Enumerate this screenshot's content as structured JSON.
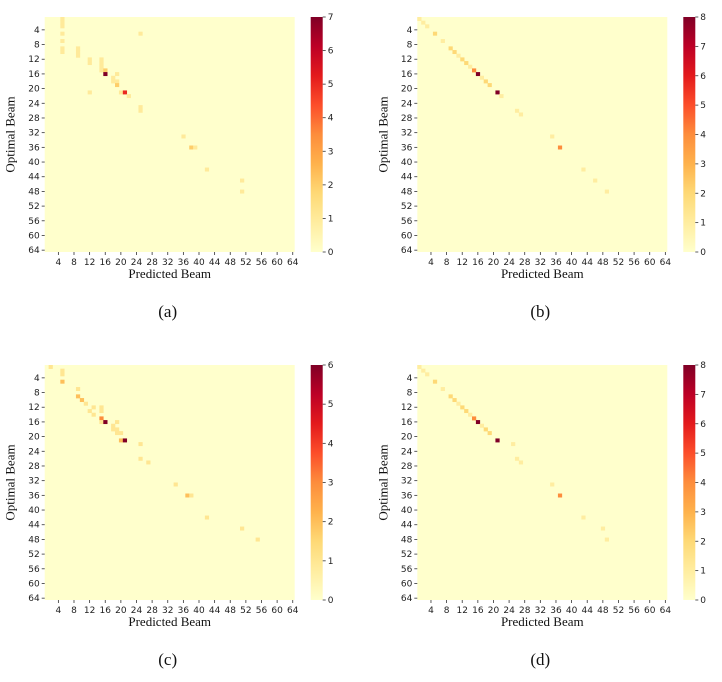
{
  "chart_data": [
    {
      "type": "heatmap",
      "caption": "(a)",
      "xlabel": "Predicted Beam",
      "ylabel": "Optimal Beam",
      "x_ticks": [
        4,
        8,
        12,
        16,
        20,
        24,
        28,
        32,
        36,
        40,
        44,
        48,
        52,
        56,
        60,
        64
      ],
      "y_ticks": [
        4,
        8,
        12,
        16,
        20,
        24,
        28,
        32,
        36,
        40,
        44,
        48,
        52,
        56,
        60,
        64
      ],
      "grid_size": 64,
      "colormap": "YlOrRd",
      "color_range": [
        0,
        7
      ],
      "colorbar_ticks": [
        0,
        1,
        2,
        3,
        4,
        5,
        6,
        7
      ],
      "cells": [
        {
          "y": 1,
          "x": 5,
          "v": 1
        },
        {
          "y": 2,
          "x": 5,
          "v": 1
        },
        {
          "y": 3,
          "x": 5,
          "v": 1
        },
        {
          "y": 5,
          "x": 5,
          "v": 1
        },
        {
          "y": 7,
          "x": 5,
          "v": 1
        },
        {
          "y": 9,
          "x": 5,
          "v": 1
        },
        {
          "y": 10,
          "x": 5,
          "v": 1
        },
        {
          "y": 5,
          "x": 25,
          "v": 1
        },
        {
          "y": 9,
          "x": 9,
          "v": 1
        },
        {
          "y": 10,
          "x": 9,
          "v": 1
        },
        {
          "y": 11,
          "x": 9,
          "v": 1
        },
        {
          "y": 12,
          "x": 12,
          "v": 1
        },
        {
          "y": 13,
          "x": 12,
          "v": 1
        },
        {
          "y": 12,
          "x": 15,
          "v": 1
        },
        {
          "y": 13,
          "x": 15,
          "v": 1
        },
        {
          "y": 14,
          "x": 15,
          "v": 1
        },
        {
          "y": 15,
          "x": 15,
          "v": 1
        },
        {
          "y": 15,
          "x": 16,
          "v": 2
        },
        {
          "y": 16,
          "x": 16,
          "v": 7
        },
        {
          "y": 16,
          "x": 19,
          "v": 1
        },
        {
          "y": 17,
          "x": 18,
          "v": 1
        },
        {
          "y": 18,
          "x": 18,
          "v": 1
        },
        {
          "y": 18,
          "x": 19,
          "v": 1
        },
        {
          "y": 19,
          "x": 19,
          "v": 2
        },
        {
          "y": 21,
          "x": 12,
          "v": 1
        },
        {
          "y": 21,
          "x": 20,
          "v": 1
        },
        {
          "y": 21,
          "x": 21,
          "v": 5
        },
        {
          "y": 22,
          "x": 22,
          "v": 1
        },
        {
          "y": 25,
          "x": 25,
          "v": 1
        },
        {
          "y": 26,
          "x": 25,
          "v": 1
        },
        {
          "y": 33,
          "x": 36,
          "v": 1
        },
        {
          "y": 36,
          "x": 38,
          "v": 2
        },
        {
          "y": 36,
          "x": 39,
          "v": 1
        },
        {
          "y": 42,
          "x": 42,
          "v": 1
        },
        {
          "y": 45,
          "x": 51,
          "v": 1
        },
        {
          "y": 48,
          "x": 51,
          "v": 1
        }
      ]
    },
    {
      "type": "heatmap",
      "caption": "(b)",
      "xlabel": "Predicted Beam",
      "ylabel": "Optimal Beam",
      "x_ticks": [
        4,
        8,
        12,
        16,
        20,
        24,
        28,
        32,
        36,
        40,
        44,
        48,
        52,
        56,
        60,
        64
      ],
      "y_ticks": [
        4,
        8,
        12,
        16,
        20,
        24,
        28,
        32,
        36,
        40,
        44,
        48,
        52,
        56,
        60,
        64
      ],
      "grid_size": 64,
      "colormap": "YlOrRd",
      "color_range": [
        0,
        8
      ],
      "colorbar_ticks": [
        0,
        1,
        2,
        3,
        4,
        5,
        6,
        7,
        8
      ],
      "cells": [
        {
          "y": 1,
          "x": 1,
          "v": 1
        },
        {
          "y": 2,
          "x": 2,
          "v": 1
        },
        {
          "y": 3,
          "x": 3,
          "v": 1
        },
        {
          "y": 5,
          "x": 5,
          "v": 2
        },
        {
          "y": 7,
          "x": 7,
          "v": 1
        },
        {
          "y": 9,
          "x": 9,
          "v": 2
        },
        {
          "y": 10,
          "x": 10,
          "v": 2
        },
        {
          "y": 11,
          "x": 11,
          "v": 1
        },
        {
          "y": 12,
          "x": 12,
          "v": 2
        },
        {
          "y": 13,
          "x": 13,
          "v": 2
        },
        {
          "y": 14,
          "x": 14,
          "v": 1
        },
        {
          "y": 15,
          "x": 15,
          "v": 4
        },
        {
          "y": 16,
          "x": 16,
          "v": 8
        },
        {
          "y": 17,
          "x": 17,
          "v": 1
        },
        {
          "y": 18,
          "x": 18,
          "v": 2
        },
        {
          "y": 19,
          "x": 19,
          "v": 2
        },
        {
          "y": 21,
          "x": 21,
          "v": 8
        },
        {
          "y": 22,
          "x": 22,
          "v": 1
        },
        {
          "y": 26,
          "x": 26,
          "v": 1
        },
        {
          "y": 27,
          "x": 27,
          "v": 1
        },
        {
          "y": 33,
          "x": 35,
          "v": 1
        },
        {
          "y": 36,
          "x": 37,
          "v": 4
        },
        {
          "y": 42,
          "x": 43,
          "v": 1
        },
        {
          "y": 45,
          "x": 46,
          "v": 1
        },
        {
          "y": 48,
          "x": 49,
          "v": 1
        }
      ]
    },
    {
      "type": "heatmap",
      "caption": "(c)",
      "xlabel": "Predicted Beam",
      "ylabel": "Optimal Beam",
      "x_ticks": [
        4,
        8,
        12,
        16,
        20,
        24,
        28,
        32,
        36,
        40,
        44,
        48,
        52,
        56,
        60,
        64
      ],
      "y_ticks": [
        4,
        8,
        12,
        16,
        20,
        24,
        28,
        32,
        36,
        40,
        44,
        48,
        52,
        56,
        60,
        64
      ],
      "grid_size": 64,
      "colormap": "YlOrRd",
      "color_range": [
        0,
        6
      ],
      "colorbar_ticks": [
        0,
        1,
        2,
        3,
        4,
        5,
        6
      ],
      "cells": [
        {
          "y": 1,
          "x": 2,
          "v": 1
        },
        {
          "y": 2,
          "x": 5,
          "v": 1
        },
        {
          "y": 3,
          "x": 5,
          "v": 1
        },
        {
          "y": 5,
          "x": 5,
          "v": 2
        },
        {
          "y": 7,
          "x": 9,
          "v": 1
        },
        {
          "y": 9,
          "x": 9,
          "v": 2
        },
        {
          "y": 10,
          "x": 10,
          "v": 2
        },
        {
          "y": 11,
          "x": 11,
          "v": 1
        },
        {
          "y": 13,
          "x": 12,
          "v": 1
        },
        {
          "y": 12,
          "x": 13,
          "v": 1
        },
        {
          "y": 14,
          "x": 13,
          "v": 1
        },
        {
          "y": 12,
          "x": 15,
          "v": 1
        },
        {
          "y": 13,
          "x": 15,
          "v": 1
        },
        {
          "y": 15,
          "x": 15,
          "v": 3
        },
        {
          "y": 16,
          "x": 15,
          "v": 1
        },
        {
          "y": 16,
          "x": 16,
          "v": 6
        },
        {
          "y": 16,
          "x": 19,
          "v": 1
        },
        {
          "y": 17,
          "x": 18,
          "v": 1
        },
        {
          "y": 18,
          "x": 18,
          "v": 1
        },
        {
          "y": 18,
          "x": 19,
          "v": 1
        },
        {
          "y": 19,
          "x": 19,
          "v": 1
        },
        {
          "y": 19,
          "x": 20,
          "v": 1
        },
        {
          "y": 21,
          "x": 20,
          "v": 2
        },
        {
          "y": 21,
          "x": 21,
          "v": 6
        },
        {
          "y": 22,
          "x": 25,
          "v": 1
        },
        {
          "y": 26,
          "x": 25,
          "v": 1
        },
        {
          "y": 27,
          "x": 27,
          "v": 1
        },
        {
          "y": 33,
          "x": 34,
          "v": 1
        },
        {
          "y": 36,
          "x": 37,
          "v": 2
        },
        {
          "y": 36,
          "x": 38,
          "v": 1
        },
        {
          "y": 42,
          "x": 42,
          "v": 1
        },
        {
          "y": 45,
          "x": 51,
          "v": 1
        },
        {
          "y": 48,
          "x": 55,
          "v": 1
        }
      ]
    },
    {
      "type": "heatmap",
      "caption": "(d)",
      "xlabel": "Predicted Beam",
      "ylabel": "Optimal Beam",
      "x_ticks": [
        4,
        8,
        12,
        16,
        20,
        24,
        28,
        32,
        36,
        40,
        44,
        48,
        52,
        56,
        60,
        64
      ],
      "y_ticks": [
        4,
        8,
        12,
        16,
        20,
        24,
        28,
        32,
        36,
        40,
        44,
        48,
        52,
        56,
        60,
        64
      ],
      "grid_size": 64,
      "colormap": "YlOrRd",
      "color_range": [
        0,
        8
      ],
      "colorbar_ticks": [
        0,
        1,
        2,
        3,
        4,
        5,
        6,
        7,
        8
      ],
      "cells": [
        {
          "y": 1,
          "x": 1,
          "v": 1
        },
        {
          "y": 2,
          "x": 2,
          "v": 1
        },
        {
          "y": 3,
          "x": 3,
          "v": 1
        },
        {
          "y": 5,
          "x": 5,
          "v": 2
        },
        {
          "y": 7,
          "x": 7,
          "v": 1
        },
        {
          "y": 9,
          "x": 9,
          "v": 2
        },
        {
          "y": 10,
          "x": 10,
          "v": 2
        },
        {
          "y": 11,
          "x": 11,
          "v": 1
        },
        {
          "y": 12,
          "x": 12,
          "v": 2
        },
        {
          "y": 13,
          "x": 13,
          "v": 2
        },
        {
          "y": 14,
          "x": 14,
          "v": 1
        },
        {
          "y": 15,
          "x": 15,
          "v": 4
        },
        {
          "y": 16,
          "x": 16,
          "v": 8
        },
        {
          "y": 17,
          "x": 17,
          "v": 1
        },
        {
          "y": 18,
          "x": 18,
          "v": 2
        },
        {
          "y": 19,
          "x": 19,
          "v": 2
        },
        {
          "y": 21,
          "x": 21,
          "v": 8
        },
        {
          "y": 22,
          "x": 25,
          "v": 1
        },
        {
          "y": 26,
          "x": 26,
          "v": 1
        },
        {
          "y": 27,
          "x": 27,
          "v": 1
        },
        {
          "y": 33,
          "x": 35,
          "v": 1
        },
        {
          "y": 36,
          "x": 37,
          "v": 4
        },
        {
          "y": 42,
          "x": 43,
          "v": 1
        },
        {
          "y": 45,
          "x": 48,
          "v": 1
        },
        {
          "y": 48,
          "x": 49,
          "v": 1
        }
      ]
    }
  ]
}
